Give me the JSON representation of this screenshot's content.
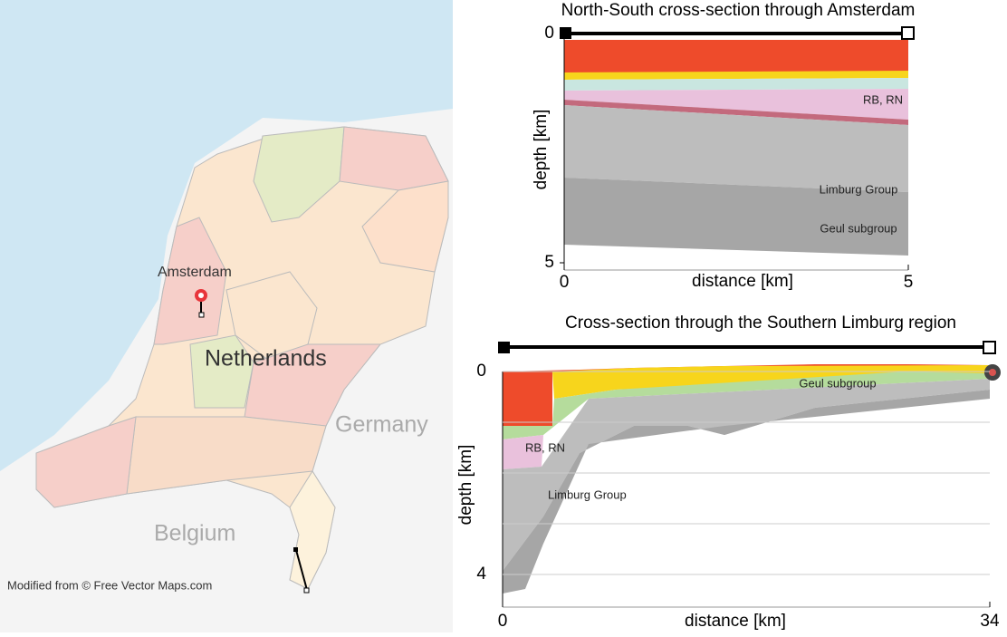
{
  "map": {
    "labels": {
      "city": "Amsterdam",
      "country": "Netherlands",
      "neighbor_east": "Germany",
      "neighbor_south": "Belgium"
    },
    "credit": "Modified from © Free Vector Maps.com"
  },
  "sections": [
    {
      "title": "North-South cross-section through Amsterdam",
      "x_label": "distance [km]",
      "y_label": "depth [km]",
      "xlim": [
        0,
        5
      ],
      "xticks": [
        0,
        5
      ],
      "ylim": [
        0,
        5
      ],
      "yticks": [
        0,
        5
      ],
      "layer_labels": [
        "RB, RN",
        "Limburg Group",
        "Geul subgroup"
      ]
    },
    {
      "title": "Cross-section through the Southern Limburg region",
      "x_label": "distance [km]",
      "y_label": "depth [km]",
      "xlim": [
        0,
        34
      ],
      "xticks": [
        0,
        34
      ],
      "ylim": [
        0,
        4.5
      ],
      "yticks": [
        0,
        {
          "value": 1,
          "label": null
        },
        {
          "value": 2,
          "label": null
        },
        {
          "value": 3,
          "label": null
        },
        4
      ],
      "layer_labels": [
        "Geul subgroup",
        "RB, RN",
        "Limburg Group"
      ]
    }
  ]
}
